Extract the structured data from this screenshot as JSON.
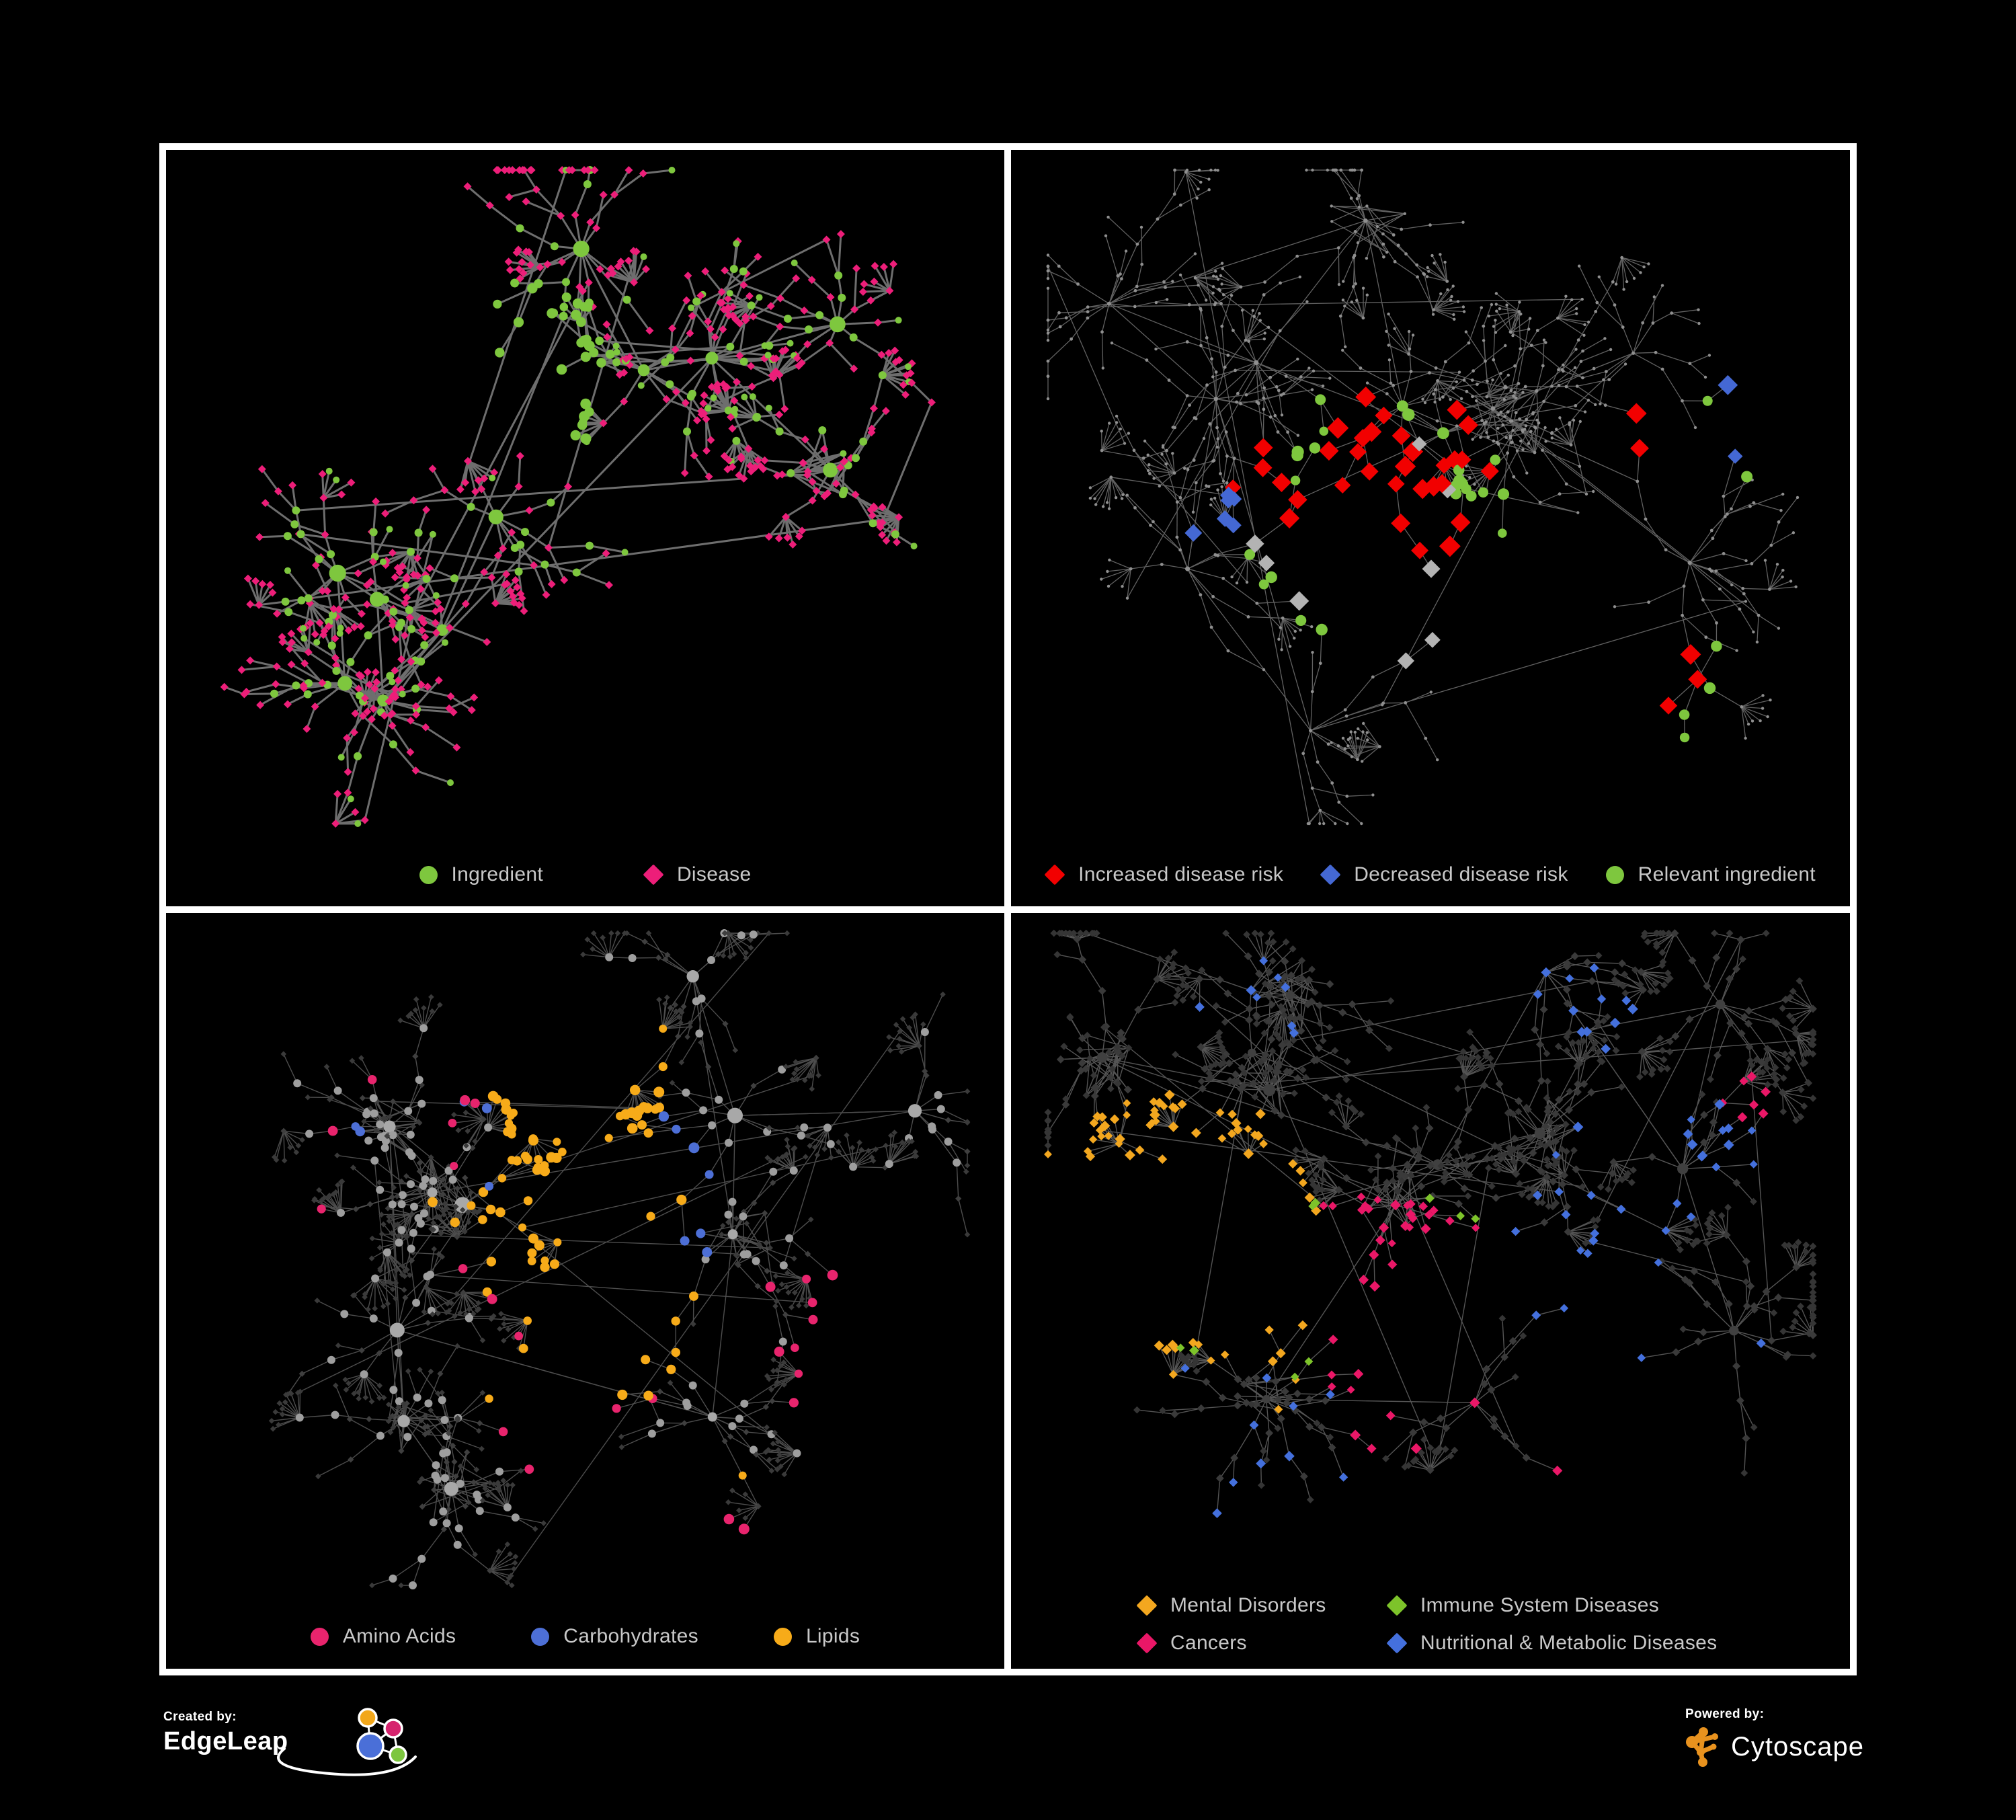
{
  "canvas": {
    "background": "#000000",
    "panel_border_color": "#ffffff",
    "legend_text_color": "#c8c8c8"
  },
  "footer": {
    "created_by_label": "Created by:",
    "created_by_brand": "EdgeLeap",
    "powered_by_label": "Powered by:",
    "powered_by_brand": "Cytoscape",
    "edgeleap_logo_colors": {
      "orange": "#f2a71b",
      "pink": "#d6246e",
      "blue": "#4a6fd8",
      "green": "#7dc63f"
    },
    "cytoscape_logo_color": "#e8921e"
  },
  "panels": [
    {
      "name": "ingredient-disease-network",
      "legend": [
        {
          "label": "Ingredient",
          "shape": "circle",
          "color": "#7ec73e"
        },
        {
          "label": "Disease",
          "shape": "diamond",
          "color": "#ed1e79"
        }
      ],
      "network": {
        "seed": 9,
        "clusters": 11,
        "branches": [
          6,
          12
        ],
        "steps": [
          2,
          4
        ],
        "len": [
          30,
          62
        ],
        "fanProb": 0.3,
        "fan": [
          5,
          11
        ],
        "hairballProb": 0.3,
        "hairball": [
          12,
          22
        ],
        "edge": {
          "color": "#787878",
          "width": 3.0,
          "opacity": 0.92
        },
        "base": {
          "hub": {
            "shape": "circle",
            "color": "#7ec73e",
            "rmin": 8,
            "rmax": 13
          },
          "mid": [
            {
              "shape": "circle",
              "color": "#7ec73e",
              "r": 6,
              "w": 0.42
            },
            {
              "shape": "diamond",
              "color": "#ed1e79",
              "r": 6,
              "w": 0.58
            }
          ],
          "leaf": [
            {
              "shape": "diamond",
              "color": "#ed1e79",
              "r": 6,
              "w": 0.86
            },
            {
              "shape": "circle",
              "color": "#7ec73e",
              "r": 5,
              "w": 0.14
            }
          ]
        },
        "groups": [
          {
            "shape": "circle",
            "color": "#7ec73e",
            "count": 34,
            "fx": 0.44,
            "fy": 0.3,
            "spread": 0.05,
            "r": 7
          }
        ]
      }
    },
    {
      "name": "disease-risk-network",
      "legend": [
        {
          "label": "Increased disease risk",
          "shape": "diamond",
          "color": "#f20000"
        },
        {
          "label": "Decreased disease risk",
          "shape": "diamond",
          "color": "#4468d4"
        },
        {
          "label": "Relevant ingredient",
          "shape": "circle",
          "color": "#7ec73e"
        }
      ],
      "network": {
        "seed": 27,
        "clusters": 12,
        "branches": [
          6,
          12
        ],
        "steps": [
          2,
          5
        ],
        "len": [
          30,
          64
        ],
        "fanProb": 0.28,
        "fan": [
          5,
          11
        ],
        "hairballProb": 0.25,
        "hairball": [
          12,
          20
        ],
        "edge": {
          "color": "#7a7a7a",
          "width": 1.3,
          "opacity": 0.8
        },
        "base": {
          "hub": {
            "shape": "circle",
            "color": "#8f8f8f",
            "rmin": 2.6,
            "rmax": 3.6
          },
          "mid": {
            "shape": "circle",
            "color": "#8f8f8f",
            "r": 2.4
          },
          "leaf": {
            "shape": "circle",
            "color": "#8f8f8f",
            "r": 2.2
          }
        },
        "groups": [
          {
            "shape": "diamond",
            "color": "#f20000",
            "count": 28,
            "fx": 0.47,
            "fy": 0.47,
            "spread": 0.12,
            "r": 14
          },
          {
            "shape": "diamond",
            "color": "#f20000",
            "count": 4,
            "fx": 0.29,
            "fy": 0.47,
            "spread": 0.05,
            "r": 14
          },
          {
            "shape": "diamond",
            "color": "#f20000",
            "count": 3,
            "fx": 0.77,
            "fy": 0.78,
            "spread": 0.05,
            "r": 14
          },
          {
            "shape": "diamond",
            "color": "#f20000",
            "count": 2,
            "fx": 0.74,
            "fy": 0.38,
            "spread": 0.03,
            "r": 14
          },
          {
            "shape": "diamond",
            "color": "#4468d4",
            "count": 6,
            "fx": 0.27,
            "fy": 0.53,
            "spread": 0.05,
            "r": 13
          },
          {
            "shape": "diamond",
            "color": "#4468d4",
            "count": 2,
            "fx": 0.9,
            "fy": 0.39,
            "spread": 0.012,
            "r": 13
          },
          {
            "shape": "diamond",
            "color": "#b3b3b3",
            "count": 8,
            "fx": 0.43,
            "fy": 0.53,
            "spread": 0.16,
            "r": 13
          },
          {
            "shape": "circle",
            "color": "#7ec73e",
            "count": 26,
            "fx": 0.44,
            "fy": 0.52,
            "spread": 0.15,
            "r": 8
          },
          {
            "shape": "circle",
            "color": "#7ec73e",
            "count": 4,
            "fx": 0.81,
            "fy": 0.79,
            "spread": 0.05,
            "r": 8
          },
          {
            "shape": "circle",
            "color": "#7ec73e",
            "count": 2,
            "fx": 0.88,
            "fy": 0.42,
            "spread": 0.02,
            "r": 8
          }
        ]
      }
    },
    {
      "name": "nutrient-class-network",
      "legend": [
        {
          "label": "Amino Acids",
          "shape": "circle",
          "color": "#e8246d"
        },
        {
          "label": "Carbohydrates",
          "shape": "circle",
          "color": "#4d6fd6"
        },
        {
          "label": "Lipids",
          "shape": "circle",
          "color": "#f7ab19"
        }
      ],
      "network": {
        "seed": 5,
        "clusters": 11,
        "branches": [
          6,
          11
        ],
        "steps": [
          2,
          4
        ],
        "len": [
          32,
          62
        ],
        "fanProb": 0.3,
        "fan": [
          6,
          13
        ],
        "hairballProb": 0.35,
        "hairball": [
          14,
          26
        ],
        "edge": {
          "color": "#9a9a9a",
          "width": 1.4,
          "opacity": 0.5
        },
        "base": {
          "hub": {
            "shape": "circle",
            "color": "#a8a8a8",
            "rmin": 7,
            "rmax": 12
          },
          "mid": [
            {
              "shape": "circle",
              "color": "#9e9e9e",
              "r": 6,
              "w": 0.55
            },
            {
              "shape": "diamond",
              "color": "#3f3f3f",
              "r": 4.6,
              "w": 0.45
            }
          ],
          "leaf": {
            "shape": "diamond",
            "color": "#3a3a3a",
            "r": 4.3
          }
        },
        "groups": [
          {
            "shape": "circle",
            "color": "#f7ab19",
            "count": 40,
            "fx": 0.47,
            "fy": 0.27,
            "spread": 0.1,
            "r": 7
          },
          {
            "shape": "circle",
            "color": "#f7ab19",
            "count": 16,
            "fx": 0.42,
            "fy": 0.48,
            "spread": 0.08,
            "r": 7
          },
          {
            "shape": "circle",
            "color": "#f7ab19",
            "count": 12,
            "fx": 0.55,
            "fy": 0.6,
            "spread": 0.12,
            "r": 7
          },
          {
            "shape": "circle",
            "color": "#f7ab19",
            "count": 8,
            "fx": 0.5,
            "fy": 0.5,
            "spread": 0.33,
            "r": 7
          },
          {
            "shape": "circle",
            "color": "#e8246d",
            "count": 10,
            "fx": 0.5,
            "fy": 0.72,
            "spread": 0.3,
            "r": 7
          },
          {
            "shape": "circle",
            "color": "#e8246d",
            "count": 8,
            "fx": 0.77,
            "fy": 0.62,
            "spread": 0.12,
            "r": 7
          },
          {
            "shape": "circle",
            "color": "#e8246d",
            "count": 7,
            "fx": 0.25,
            "fy": 0.3,
            "spread": 0.22,
            "r": 7
          },
          {
            "shape": "circle",
            "color": "#4d6fd6",
            "count": 8,
            "fx": 0.52,
            "fy": 0.42,
            "spread": 0.06,
            "r": 7
          },
          {
            "shape": "circle",
            "color": "#4d6fd6",
            "count": 4,
            "fx": 0.25,
            "fy": 0.2,
            "spread": 0.25,
            "r": 7
          }
        ]
      }
    },
    {
      "name": "disease-class-network",
      "legend": [
        {
          "label": "Mental Disorders",
          "shape": "diamond",
          "color": "#f3a71f"
        },
        {
          "label": "Immune System Diseases",
          "shape": "diamond",
          "color": "#7dc32a"
        },
        {
          "label": "Cancers",
          "shape": "diamond",
          "color": "#ea1767"
        },
        {
          "label": "Nutritional & Metabolic Diseases",
          "shape": "diamond",
          "color": "#4470dd"
        }
      ],
      "network": {
        "seed": 14,
        "clusters": 13,
        "branches": [
          6,
          12
        ],
        "steps": [
          2,
          4
        ],
        "len": [
          30,
          58
        ],
        "fanProb": 0.32,
        "fan": [
          6,
          13
        ],
        "hairballProb": 0.35,
        "hairball": [
          14,
          26
        ],
        "edge": {
          "color": "#6a6a6a",
          "width": 1.4,
          "opacity": 0.8
        },
        "base": {
          "hub": {
            "shape": "circle",
            "color": "#404040",
            "rmin": 6,
            "rmax": 9
          },
          "mid": {
            "shape": "diamond",
            "color": "#3a3a3a",
            "r": 6
          },
          "leaf": {
            "shape": "diamond",
            "color": "#353535",
            "r": 5.4
          }
        },
        "groups": [
          {
            "shape": "diamond",
            "color": "#f3a71f",
            "count": 55,
            "fx": 0.2,
            "fy": 0.44,
            "spread": 0.08,
            "r": 7
          },
          {
            "shape": "diamond",
            "color": "#f3a71f",
            "count": 10,
            "fx": 0.3,
            "fy": 0.6,
            "spread": 0.18,
            "r": 7
          },
          {
            "shape": "diamond",
            "color": "#ea1767",
            "count": 30,
            "fx": 0.47,
            "fy": 0.53,
            "spread": 0.09,
            "r": 7
          },
          {
            "shape": "diamond",
            "color": "#ea1767",
            "count": 7,
            "fx": 0.88,
            "fy": 0.28,
            "spread": 0.04,
            "r": 7
          },
          {
            "shape": "diamond",
            "color": "#ea1767",
            "count": 8,
            "fx": 0.45,
            "fy": 0.78,
            "spread": 0.22,
            "r": 7
          },
          {
            "shape": "diamond",
            "color": "#4470dd",
            "count": 22,
            "fx": 0.73,
            "fy": 0.5,
            "spread": 0.2,
            "r": 7
          },
          {
            "shape": "diamond",
            "color": "#4470dd",
            "count": 12,
            "fx": 0.68,
            "fy": 0.13,
            "spread": 0.1,
            "r": 7
          },
          {
            "shape": "diamond",
            "color": "#4470dd",
            "count": 10,
            "fx": 0.84,
            "fy": 0.33,
            "spread": 0.07,
            "r": 7
          },
          {
            "shape": "diamond",
            "color": "#4470dd",
            "count": 10,
            "fx": 0.3,
            "fy": 0.78,
            "spread": 0.18,
            "r": 7
          },
          {
            "shape": "diamond",
            "color": "#4470dd",
            "count": 8,
            "fx": 0.28,
            "fy": 0.14,
            "spread": 0.1,
            "r": 7
          },
          {
            "shape": "diamond",
            "color": "#7dc32a",
            "count": 9,
            "fx": 0.45,
            "fy": 0.5,
            "spread": 0.28,
            "r": 7
          }
        ]
      }
    }
  ]
}
